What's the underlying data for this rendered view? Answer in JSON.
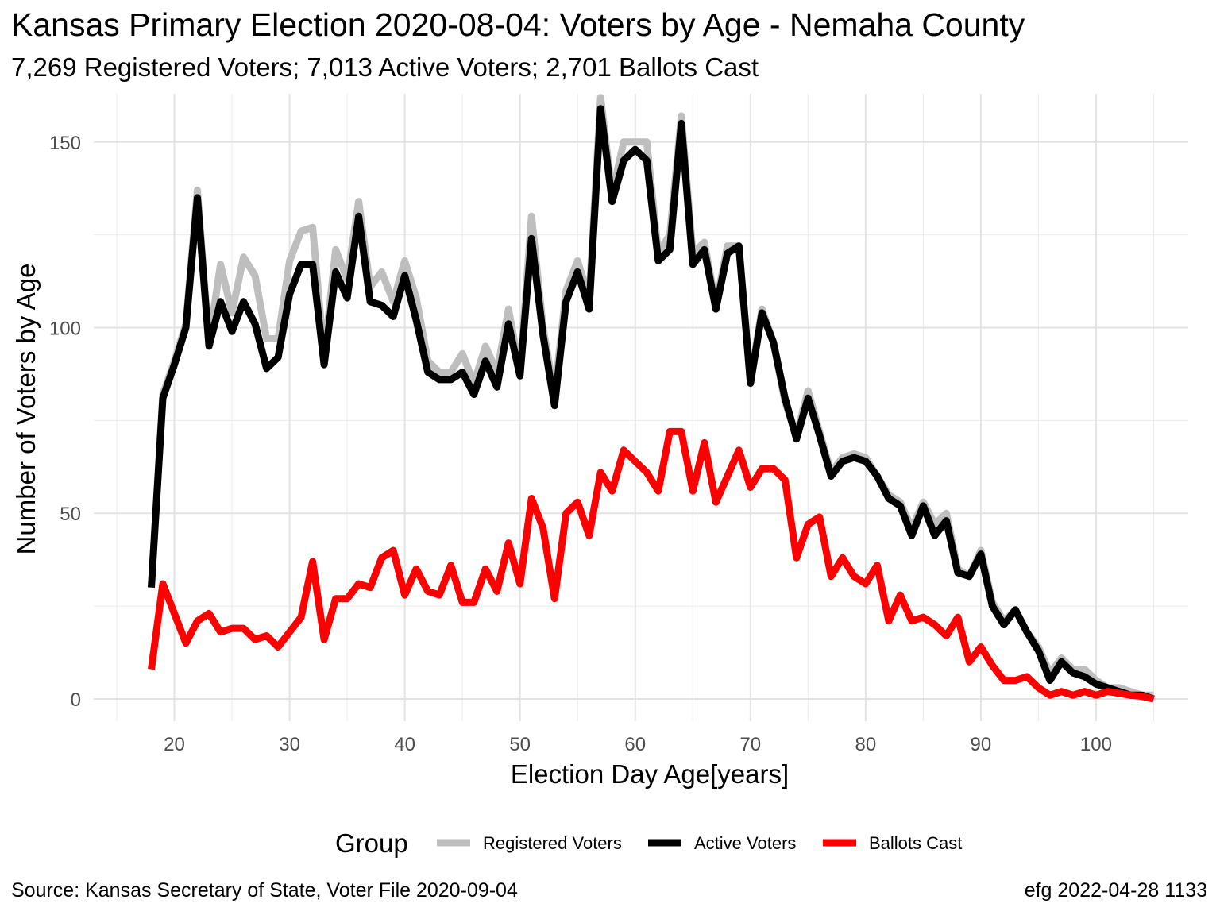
{
  "chart_data": {
    "type": "line",
    "title": "Kansas Primary Election 2020-08-04:  Voters by Age - Nemaha County",
    "subtitle": "7,269 Registered Voters; 7,013 Active Voters; 2,701 Ballots Cast",
    "xlabel": "Election Day Age[years]",
    "ylabel": "Number of Voters by Age",
    "xlim": [
      13,
      108
    ],
    "ylim": [
      -6,
      163
    ],
    "x_ticks": [
      20,
      30,
      40,
      50,
      60,
      70,
      80,
      90,
      100
    ],
    "y_ticks": [
      0,
      50,
      100,
      150
    ],
    "grid": true,
    "legend": {
      "title": "Group",
      "position": "bottom",
      "items": [
        "Registered Voters",
        "Active Voters",
        "Ballots Cast"
      ]
    },
    "caption_left": "Source:  Kansas Secretary of State, Voter File  2020-09-04",
    "caption_right": "efg 2022-04-28 1133",
    "x": [
      18,
      19,
      20,
      21,
      22,
      23,
      24,
      25,
      26,
      27,
      28,
      29,
      30,
      31,
      32,
      33,
      34,
      35,
      36,
      37,
      38,
      39,
      40,
      41,
      42,
      43,
      44,
      45,
      46,
      47,
      48,
      49,
      50,
      51,
      52,
      53,
      54,
      55,
      56,
      57,
      58,
      59,
      60,
      61,
      62,
      63,
      64,
      65,
      66,
      67,
      68,
      69,
      70,
      71,
      72,
      73,
      74,
      75,
      76,
      77,
      78,
      79,
      80,
      81,
      82,
      83,
      84,
      85,
      86,
      87,
      88,
      89,
      90,
      91,
      92,
      93,
      94,
      95,
      96,
      97,
      98,
      99,
      100,
      101,
      102,
      103,
      104,
      105
    ],
    "series": [
      {
        "name": "Registered Voters",
        "color": "#bebebe",
        "values": [
          30,
          82,
          91,
          101,
          137,
          96,
          117,
          104,
          119,
          114,
          97,
          97,
          118,
          126,
          127,
          92,
          121,
          113,
          134,
          111,
          115,
          107,
          118,
          108,
          91,
          88,
          88,
          93,
          85,
          95,
          88,
          105,
          88,
          130,
          100,
          82,
          110,
          118,
          108,
          162,
          136,
          150,
          150,
          150,
          120,
          125,
          157,
          120,
          123,
          106,
          122,
          122,
          86,
          105,
          96,
          80,
          71,
          83,
          72,
          61,
          65,
          66,
          65,
          60,
          55,
          53,
          46,
          53,
          47,
          50,
          35,
          33,
          40,
          26,
          21,
          24,
          18,
          14,
          7,
          11,
          8,
          8,
          5,
          3,
          3,
          2,
          1,
          1
        ]
      },
      {
        "name": "Active Voters",
        "color": "#000000",
        "values": [
          30,
          81,
          90,
          100,
          135,
          95,
          107,
          99,
          107,
          101,
          89,
          92,
          109,
          117,
          117,
          90,
          115,
          108,
          130,
          107,
          106,
          103,
          114,
          102,
          88,
          86,
          86,
          88,
          82,
          91,
          84,
          101,
          87,
          124,
          98,
          79,
          107,
          115,
          105,
          159,
          134,
          145,
          148,
          145,
          118,
          121,
          155,
          117,
          121,
          105,
          120,
          122,
          85,
          104,
          96,
          81,
          70,
          81,
          71,
          60,
          64,
          65,
          64,
          60,
          54,
          52,
          44,
          52,
          44,
          48,
          34,
          33,
          39,
          25,
          20,
          24,
          18,
          13,
          5,
          10,
          7,
          6,
          4,
          3,
          2,
          1,
          1,
          0
        ]
      },
      {
        "name": "Ballots Cast",
        "color": "#ff0000",
        "values": [
          8,
          31,
          23,
          15,
          21,
          23,
          18,
          19,
          19,
          16,
          17,
          14,
          18,
          22,
          37,
          16,
          27,
          27,
          31,
          30,
          38,
          40,
          28,
          35,
          29,
          28,
          36,
          26,
          26,
          35,
          29,
          42,
          31,
          54,
          46,
          27,
          50,
          53,
          44,
          61,
          56,
          67,
          64,
          61,
          56,
          72,
          72,
          56,
          69,
          53,
          60,
          67,
          57,
          62,
          62,
          59,
          38,
          47,
          49,
          33,
          38,
          33,
          31,
          36,
          21,
          28,
          21,
          22,
          20,
          17,
          22,
          10,
          14,
          9,
          5,
          5,
          6,
          3,
          1,
          2,
          1,
          2,
          1,
          2,
          1.5,
          1,
          0.7,
          0
        ]
      }
    ]
  }
}
